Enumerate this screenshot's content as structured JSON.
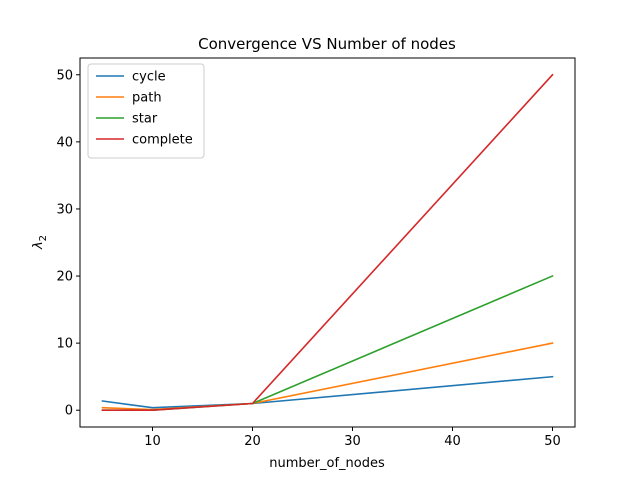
{
  "chart_data": {
    "type": "line",
    "title": "Convergence VS Number of nodes",
    "xlabel": "number_of_nodes",
    "ylabel": "λ",
    "ylabel_subscript": "2",
    "x": [
      5,
      10,
      20,
      50
    ],
    "xlim": [
      2.75,
      52.25
    ],
    "ylim": [
      -2.5,
      52.5
    ],
    "xticks": [
      10,
      20,
      30,
      40,
      50
    ],
    "yticks": [
      0,
      10,
      20,
      30,
      40,
      50
    ],
    "grid": false,
    "legend_position": "top-left",
    "series": [
      {
        "name": "cycle",
        "color": "#1f77b4",
        "values": [
          1.38,
          0.38,
          1.0,
          5.0
        ]
      },
      {
        "name": "path",
        "color": "#ff7f0e",
        "values": [
          0.38,
          0.1,
          1.0,
          10.0
        ]
      },
      {
        "name": "star",
        "color": "#2ca02c",
        "values": [
          0.0,
          0.0,
          1.0,
          20.0
        ]
      },
      {
        "name": "complete",
        "color": "#d62728",
        "values": [
          0.0,
          0.0,
          1.0,
          50.0
        ]
      }
    ]
  }
}
